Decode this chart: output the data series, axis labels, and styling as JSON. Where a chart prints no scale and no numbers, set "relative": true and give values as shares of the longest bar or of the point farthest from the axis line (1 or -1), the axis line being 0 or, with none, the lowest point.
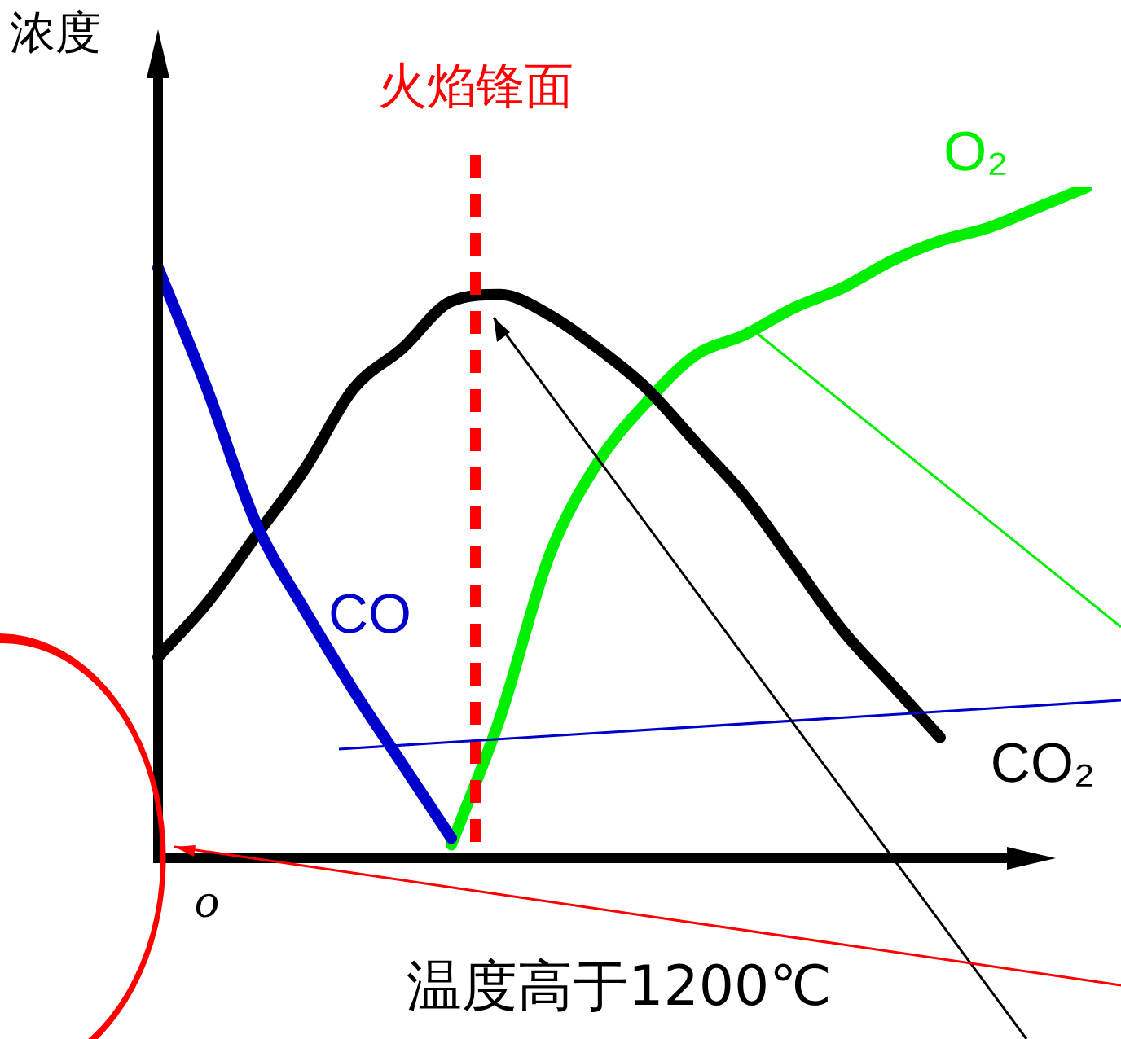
{
  "chart_data": {
    "type": "line",
    "relative": true,
    "ylabel": "浓度",
    "xlabel": "温度高于1200℃",
    "categories": [
      null,
      null,
      null,
      null,
      null,
      null,
      null,
      null,
      null,
      null,
      null,
      null,
      null,
      null,
      null,
      null,
      null,
      null,
      null,
      null
    ],
    "series": [
      {
        "name": "CO",
        "color": "#0000cc",
        "values": [
          0.88,
          0.7,
          0.5,
          0.37,
          0.25,
          0.14,
          0.03,
          null,
          null,
          null,
          null,
          null,
          null,
          null,
          null,
          null,
          null,
          null,
          null,
          null
        ]
      },
      {
        "name": "CO₂",
        "color": "#000000",
        "values": [
          0.3,
          0.38,
          0.48,
          0.58,
          0.7,
          0.76,
          0.83,
          0.84,
          0.81,
          0.76,
          0.7,
          0.62,
          0.54,
          0.44,
          0.34,
          0.26,
          0.18,
          null,
          null,
          null
        ]
      },
      {
        "name": "O₂",
        "color": "#00ee00",
        "values": [
          null,
          null,
          null,
          null,
          null,
          null,
          0.02,
          0.21,
          0.45,
          0.59,
          0.68,
          0.75,
          0.78,
          0.82,
          0.85,
          0.89,
          0.92,
          0.94,
          0.97,
          1
        ]
      }
    ],
    "annotations": [
      "o",
      "火焰锋面"
    ],
    "legend": false,
    "marker": "none",
    "line_style": "solid",
    "tick_labels": false
  }
}
